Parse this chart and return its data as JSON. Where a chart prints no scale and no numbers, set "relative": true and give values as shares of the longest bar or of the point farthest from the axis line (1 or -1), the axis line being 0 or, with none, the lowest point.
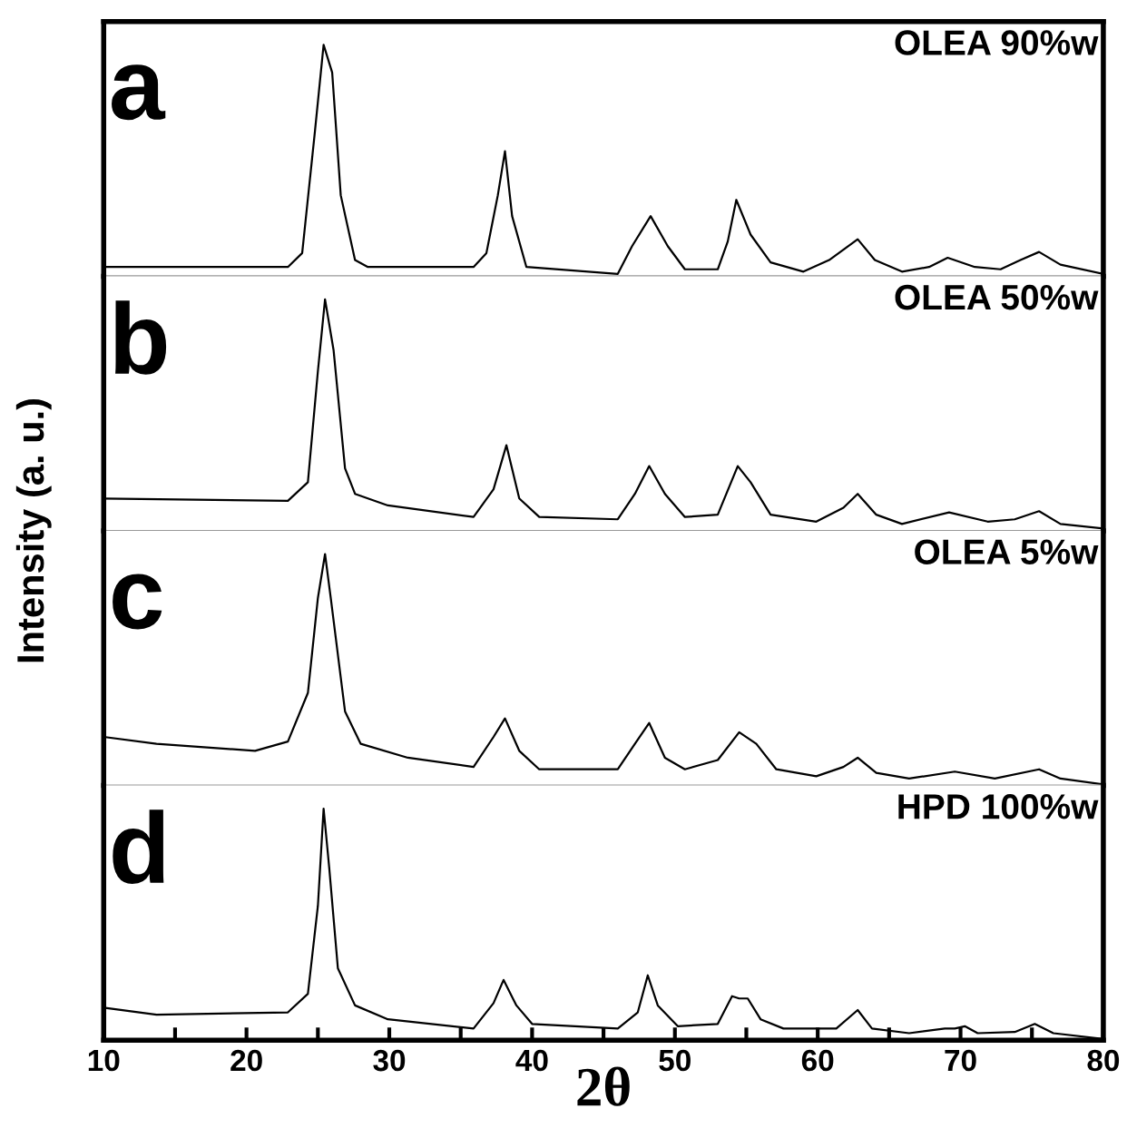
{
  "chart_data": [
    {
      "type": "line",
      "relative": true,
      "annotations": [
        "a",
        "OLEA 90%w"
      ],
      "xlim": [
        10,
        80
      ],
      "xticks": [
        10,
        20,
        30,
        40,
        50,
        60,
        70,
        80
      ],
      "tick_labels": false,
      "grid": false,
      "color": "#000000",
      "x": [
        10,
        22.9,
        23.9,
        24.8,
        25.4,
        26.0,
        26.6,
        27.6,
        28.5,
        35.9,
        36.8,
        37.6,
        38.1,
        38.6,
        39.6,
        46.0,
        47.0,
        48.3,
        49.5,
        50.7,
        53.0,
        53.7,
        54.3,
        55.3,
        56.7,
        59.0,
        60.8,
        62.8,
        64.0,
        65.9,
        67.8,
        69.1,
        71.0,
        72.8,
        74.2,
        75.5,
        77.0,
        80
      ],
      "values": [
        0.04,
        0.04,
        0.1,
        0.63,
        1.0,
        0.88,
        0.35,
        0.07,
        0.04,
        0.04,
        0.1,
        0.35,
        0.54,
        0.26,
        0.04,
        0.01,
        0.13,
        0.26,
        0.13,
        0.03,
        0.03,
        0.15,
        0.33,
        0.18,
        0.06,
        0.02,
        0.07,
        0.16,
        0.07,
        0.02,
        0.04,
        0.08,
        0.04,
        0.03,
        0.07,
        0.105,
        0.05,
        0.01
      ]
    },
    {
      "type": "line",
      "relative": true,
      "annotations": [
        "b",
        "OLEA 50%w"
      ],
      "xlim": [
        10,
        80
      ],
      "xticks": [
        10,
        20,
        30,
        40,
        50,
        60,
        70,
        80
      ],
      "tick_labels": false,
      "grid": false,
      "color": "#000000",
      "x": [
        10,
        22.9,
        24.3,
        25.0,
        25.5,
        26.1,
        26.9,
        27.6,
        29.9,
        35.9,
        37.3,
        38.2,
        39.1,
        40.5,
        46.0,
        47.2,
        48.2,
        49.3,
        50.7,
        53.0,
        54.4,
        55.3,
        56.7,
        59.9,
        61.8,
        62.8,
        64.1,
        65.9,
        69.2,
        71.9,
        73.8,
        75.5,
        77.0,
        80
      ],
      "values": [
        0.14,
        0.13,
        0.21,
        0.69,
        1.0,
        0.78,
        0.27,
        0.16,
        0.11,
        0.06,
        0.18,
        0.37,
        0.14,
        0.06,
        0.05,
        0.16,
        0.28,
        0.16,
        0.06,
        0.07,
        0.28,
        0.21,
        0.07,
        0.04,
        0.1,
        0.16,
        0.07,
        0.03,
        0.08,
        0.04,
        0.05,
        0.085,
        0.03,
        0.01
      ]
    },
    {
      "type": "line",
      "relative": true,
      "annotations": [
        "c",
        "OLEA 5%w"
      ],
      "xlim": [
        10,
        80
      ],
      "xticks": [
        10,
        20,
        30,
        40,
        50,
        60,
        70,
        80
      ],
      "tick_labels": false,
      "grid": false,
      "color": "#000000",
      "x": [
        10,
        13.7,
        20.6,
        22.9,
        24.3,
        25.0,
        25.5,
        25.9,
        26.9,
        28.0,
        31.3,
        35.9,
        37.3,
        38.1,
        39.1,
        40.5,
        46.0,
        47.2,
        48.2,
        49.3,
        50.7,
        53.0,
        54.5,
        55.7,
        57.1,
        59.9,
        61.8,
        62.8,
        64.1,
        66.4,
        69.6,
        72.4,
        75.5,
        77.0,
        80
      ],
      "values": [
        0.21,
        0.18,
        0.15,
        0.19,
        0.4,
        0.81,
        1.0,
        0.81,
        0.32,
        0.18,
        0.12,
        0.08,
        0.21,
        0.29,
        0.15,
        0.07,
        0.07,
        0.18,
        0.27,
        0.12,
        0.07,
        0.11,
        0.23,
        0.18,
        0.07,
        0.04,
        0.08,
        0.12,
        0.055,
        0.03,
        0.06,
        0.03,
        0.07,
        0.03,
        0.005
      ]
    },
    {
      "type": "line",
      "relative": true,
      "annotations": [
        "d",
        "HPD 100%w"
      ],
      "xlabel": "2θ",
      "ylabel": "Intensity (a. u.)",
      "xlim": [
        10,
        80
      ],
      "xticks": [
        10,
        {
          "value": 15,
          "label": null
        },
        20,
        {
          "value": 25,
          "label": null
        },
        30,
        {
          "value": 35,
          "label": null
        },
        40,
        {
          "value": 45,
          "label": null
        },
        50,
        {
          "value": 55,
          "label": null
        },
        60,
        {
          "value": 65,
          "label": null
        },
        70,
        {
          "value": 75,
          "label": null
        },
        80
      ],
      "tick_labels": "x",
      "grid": false,
      "color": "#000000",
      "x": [
        10,
        13.7,
        22.9,
        24.3,
        25.0,
        25.4,
        25.8,
        26.4,
        27.6,
        29.9,
        35.9,
        37.3,
        38.0,
        38.9,
        40.0,
        46.0,
        47.4,
        48.1,
        48.8,
        50.2,
        53.0,
        54.0,
        54.5,
        55.1,
        56.0,
        57.6,
        61.3,
        62.8,
        63.8,
        66.4,
        68.9,
        69.6,
        70.3,
        71.2,
        73.8,
        75.2,
        76.5,
        80
      ],
      "values": [
        0.14,
        0.11,
        0.12,
        0.2,
        0.58,
        1.0,
        0.74,
        0.31,
        0.15,
        0.09,
        0.05,
        0.16,
        0.26,
        0.15,
        0.07,
        0.05,
        0.12,
        0.28,
        0.15,
        0.06,
        0.07,
        0.19,
        0.18,
        0.18,
        0.09,
        0.05,
        0.05,
        0.13,
        0.05,
        0.03,
        0.05,
        0.05,
        0.06,
        0.03,
        0.035,
        0.07,
        0.03,
        0.005
      ]
    }
  ]
}
